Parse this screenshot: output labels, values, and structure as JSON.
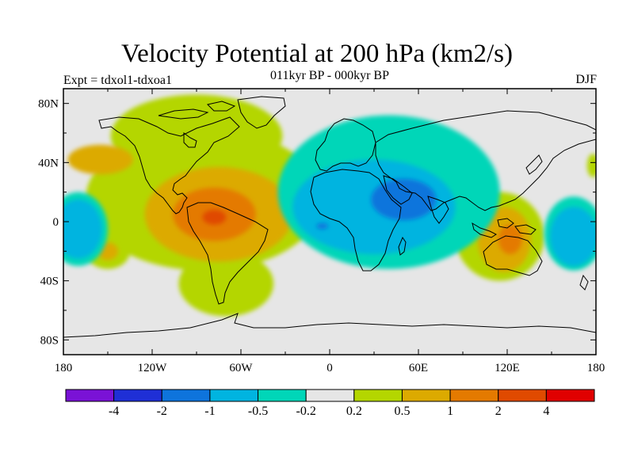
{
  "title": "Velocity Potential at 200 hPa (km2/s)",
  "subtitle": "011kyr BP - 000kyr BP",
  "experiment": "Expt = tdxol1-tdxoa1",
  "season": "DJF",
  "map": {
    "lon_range": [
      -180,
      180
    ],
    "lat_range": [
      -90,
      90
    ],
    "lat_ticks": [
      "80N",
      "40N",
      "0",
      "40S",
      "80S"
    ],
    "lon_ticks": [
      "180",
      "120W",
      "60W",
      "0",
      "60E",
      "120E",
      "180"
    ],
    "background_color": "#e6e6e6"
  },
  "colorbar": {
    "colors": [
      "#7a12d6",
      "#1f2fd6",
      "#0e74dc",
      "#00b4e0",
      "#00d6b8",
      "#e6e6e6",
      "#b4d600",
      "#dcaa00",
      "#e47a00",
      "#e04a00",
      "#e00000"
    ],
    "labels": [
      "-4",
      "-2",
      "-1",
      "-0.5",
      "-0.2",
      "0.2",
      "0.5",
      "1",
      "2",
      "4"
    ]
  },
  "fields": {
    "positive": [
      {
        "level": "0.2-0.5",
        "regions": [
          {
            "name": "americas-atlantic",
            "lon": -85,
            "lat": 15,
            "rx": 80,
            "ry": 48
          },
          {
            "name": "south-america-south",
            "lon": -70,
            "lat": -42,
            "rx": 32,
            "ry": 22
          },
          {
            "name": "north-america-north",
            "lon": -90,
            "lat": 58,
            "rx": 58,
            "ry": 28
          },
          {
            "name": "maritime-continent",
            "lon": 115,
            "lat": -10,
            "rx": 30,
            "ry": 30
          },
          {
            "name": "south-pacific-west",
            "lon": -150,
            "lat": -20,
            "rx": 15,
            "ry": 12
          },
          {
            "name": "east-pacific-edge",
            "lon": 178,
            "lat": 38,
            "rx": 4,
            "ry": 8
          }
        ]
      },
      {
        "level": "0.5-1",
        "regions": [
          {
            "name": "americas",
            "lon": -75,
            "lat": 5,
            "rx": 50,
            "ry": 32
          },
          {
            "name": "north-pacific-east",
            "lon": -155,
            "lat": 42,
            "rx": 22,
            "ry": 10
          },
          {
            "name": "maritime-continent",
            "lon": 118,
            "lat": -12,
            "rx": 18,
            "ry": 22
          },
          {
            "name": "south-pacific-west",
            "lon": -150,
            "lat": -20,
            "rx": 7,
            "ry": 6
          }
        ]
      },
      {
        "level": "1-2",
        "regions": [
          {
            "name": "americas",
            "lon": -78,
            "lat": 5,
            "rx": 28,
            "ry": 18
          },
          {
            "name": "maritime-continent",
            "lon": 122,
            "lat": -12,
            "rx": 8,
            "ry": 10
          }
        ]
      },
      {
        "level": "2-4",
        "regions": [
          {
            "name": "amazon",
            "lon": -78,
            "lat": 3,
            "rx": 8,
            "ry": 5
          }
        ]
      }
    ],
    "negative": [
      {
        "level": "-0.5--0.2",
        "regions": [
          {
            "name": "eurasia-africa",
            "lon": 40,
            "lat": 20,
            "rx": 75,
            "ry": 52
          },
          {
            "name": "pacific-east",
            "lon": -170,
            "lat": -5,
            "rx": 20,
            "ry": 25
          },
          {
            "name": "pacific-west",
            "lon": 165,
            "lat": -8,
            "rx": 20,
            "ry": 25
          }
        ]
      },
      {
        "level": "-1--0.5",
        "regions": [
          {
            "name": "africa-indian-ocean",
            "lon": 30,
            "lat": 10,
            "rx": 55,
            "ry": 32
          },
          {
            "name": "north-pacific",
            "lon": -170,
            "lat": -5,
            "rx": 16,
            "ry": 20
          },
          {
            "name": "west-pacific",
            "lon": 165,
            "lat": -10,
            "rx": 16,
            "ry": 20
          }
        ]
      },
      {
        "level": "-2--1",
        "regions": [
          {
            "name": "arabia-horn",
            "lon": 50,
            "lat": 15,
            "rx": 22,
            "ry": 14
          },
          {
            "name": "tropical-atlantic",
            "lon": -5,
            "lat": -3,
            "rx": 4,
            "ry": 2
          }
        ]
      }
    ]
  }
}
